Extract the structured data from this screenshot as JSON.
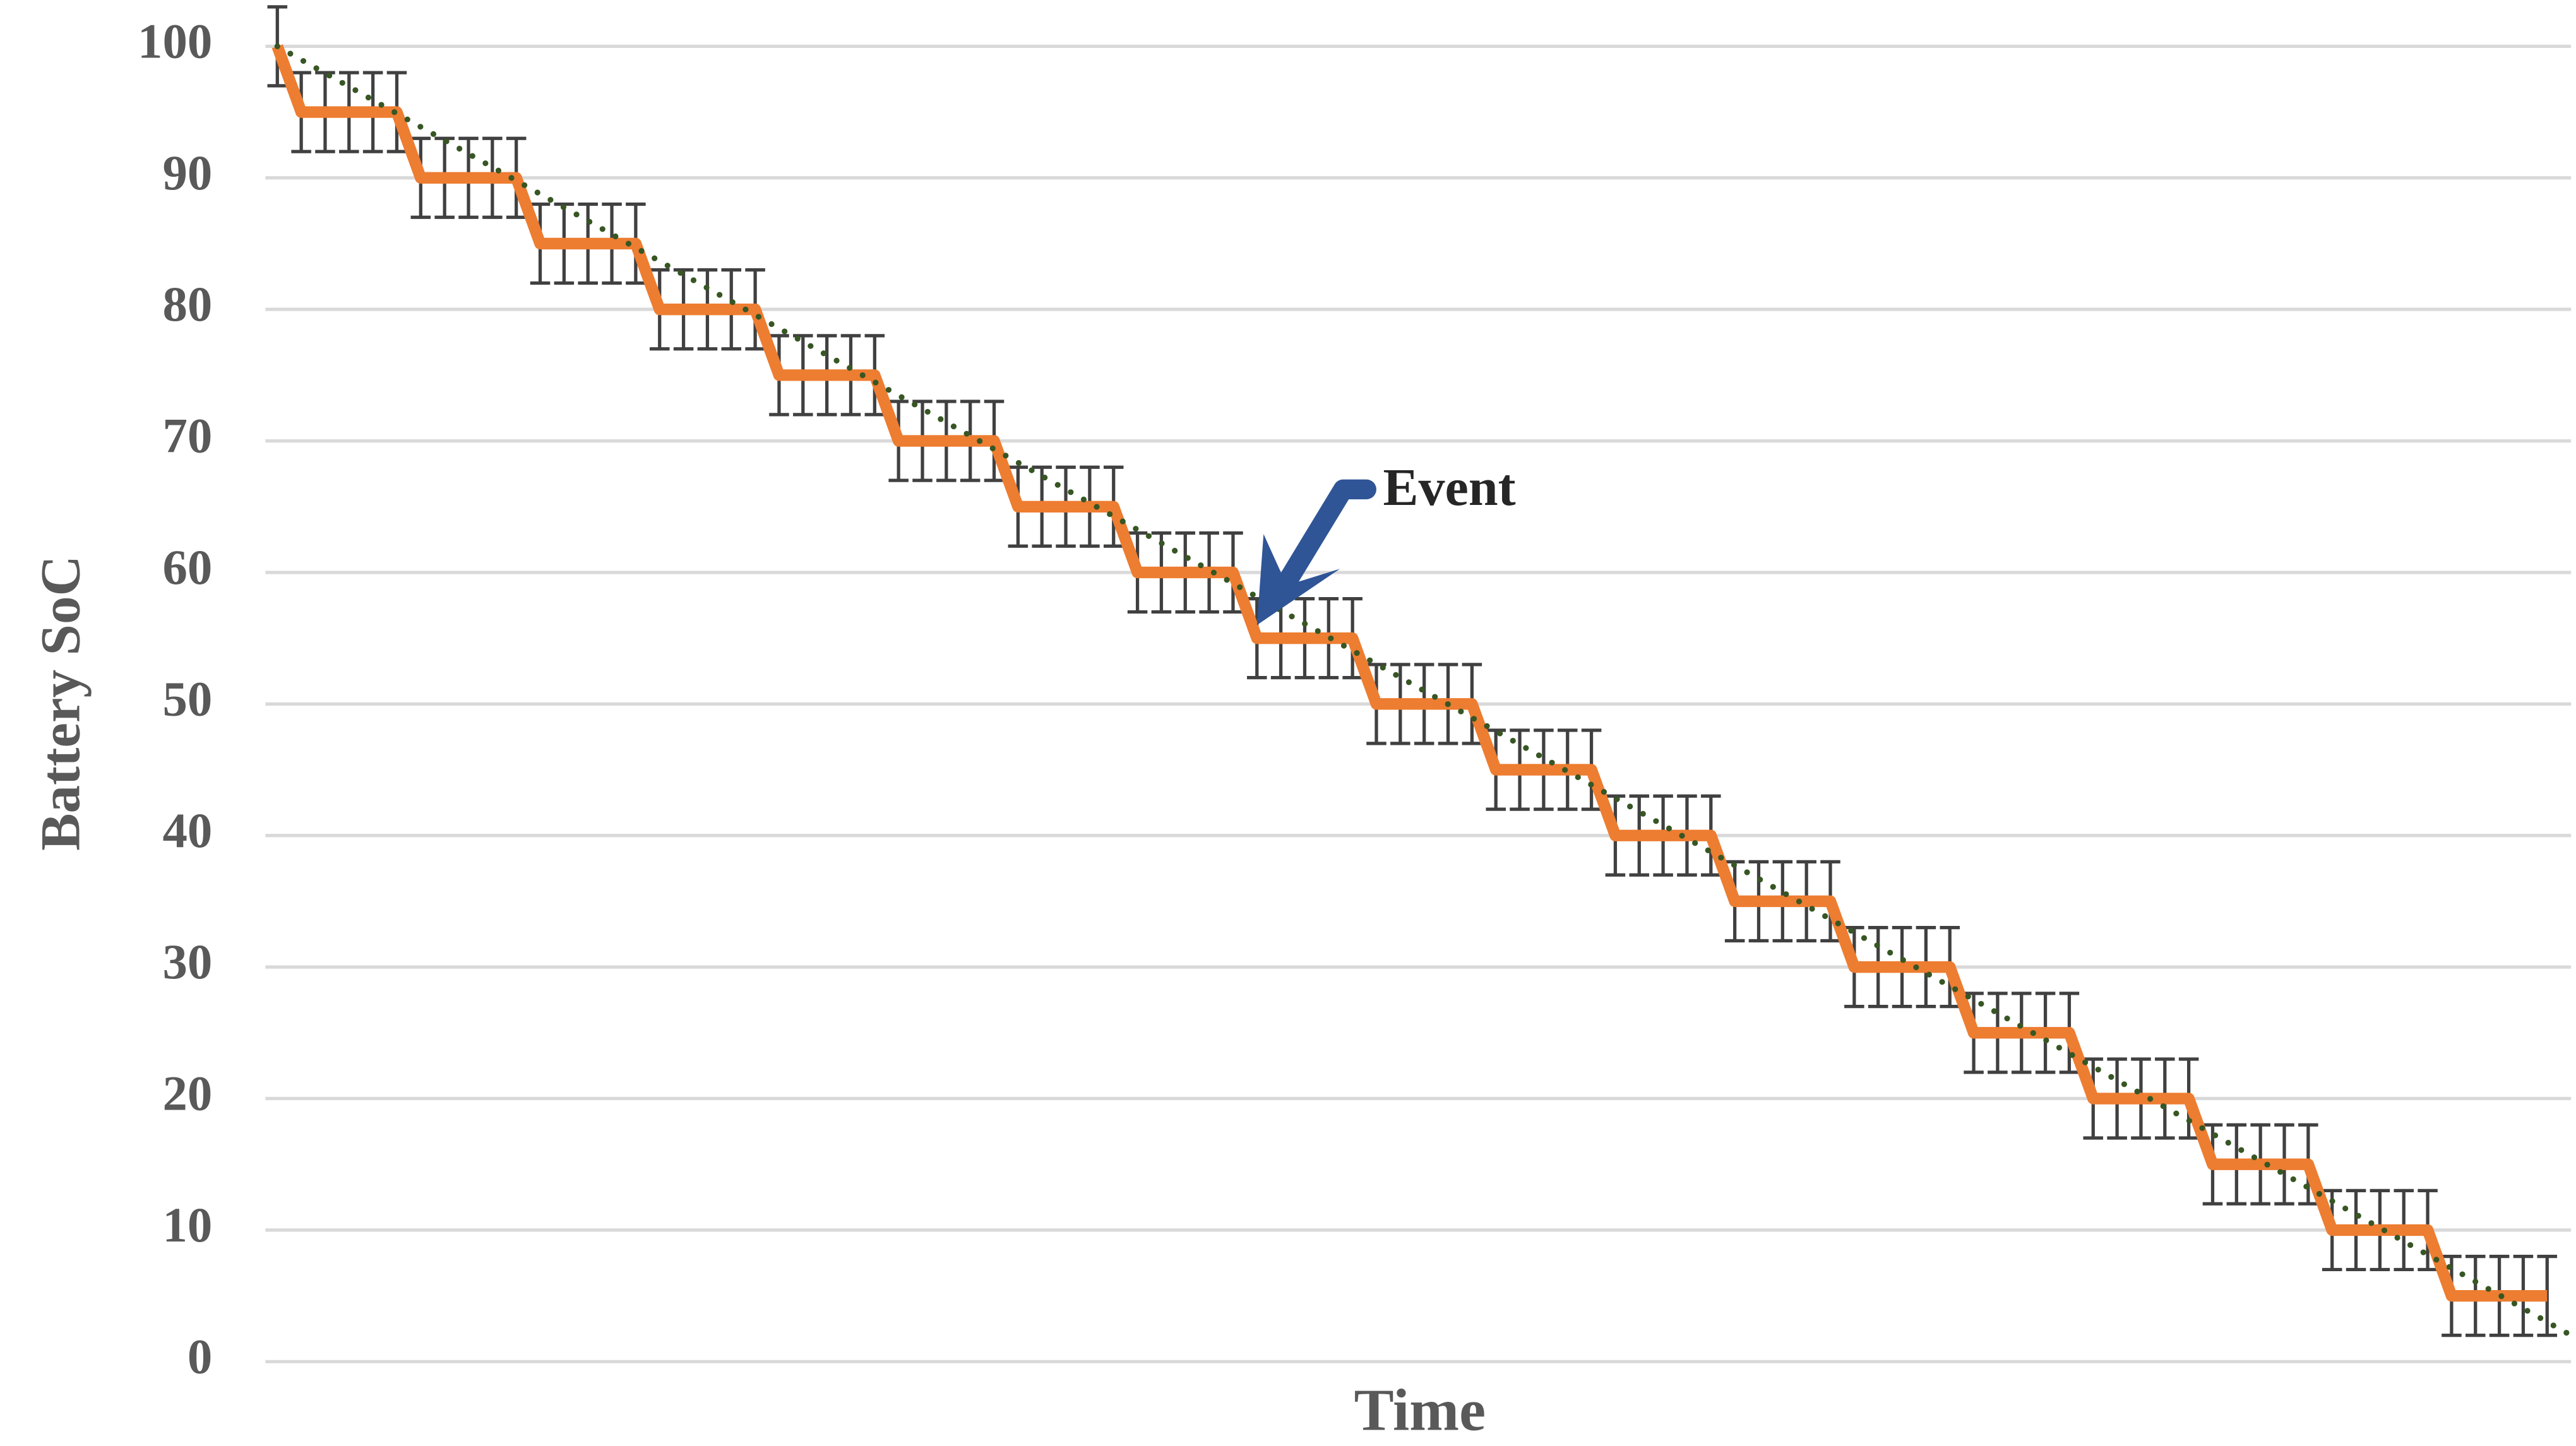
{
  "chart_data": {
    "type": "line",
    "xlabel": "Time",
    "ylabel": "Battery SoC",
    "x": [
      0,
      1,
      2,
      3,
      4,
      5,
      6,
      7,
      8,
      9,
      10,
      11,
      12,
      13,
      14,
      15,
      16,
      17,
      18,
      19,
      20,
      21,
      22,
      23,
      24,
      25,
      26,
      27,
      28,
      29,
      30,
      31,
      32,
      33,
      34,
      35,
      36,
      37,
      38,
      39,
      40,
      41,
      42,
      43,
      44,
      45,
      46,
      47,
      48,
      49,
      50,
      51,
      52,
      53,
      54,
      55,
      56,
      57,
      58,
      59,
      60,
      61,
      62,
      63,
      64,
      65,
      66,
      67,
      68,
      69,
      70,
      71,
      72,
      73,
      74,
      75,
      76,
      77,
      78,
      79,
      80,
      81,
      82,
      83,
      84,
      85,
      86,
      87,
      88,
      89,
      90,
      91,
      92,
      93,
      94,
      95
    ],
    "series": [
      {
        "color": "#ed7d31",
        "error": 3,
        "error_color": "#404040",
        "values": [
          100,
          95,
          95,
          95,
          95,
          95,
          90,
          90,
          90,
          90,
          90,
          85,
          85,
          85,
          85,
          85,
          80,
          80,
          80,
          80,
          80,
          75,
          75,
          75,
          75,
          75,
          70,
          70,
          70,
          70,
          70,
          65,
          65,
          65,
          65,
          65,
          60,
          60,
          60,
          60,
          60,
          55,
          55,
          55,
          55,
          55,
          50,
          50,
          50,
          50,
          50,
          45,
          45,
          45,
          45,
          45,
          40,
          40,
          40,
          40,
          40,
          35,
          35,
          35,
          35,
          35,
          30,
          30,
          30,
          30,
          30,
          25,
          25,
          25,
          25,
          25,
          20,
          20,
          20,
          20,
          20,
          15,
          15,
          15,
          15,
          15,
          10,
          10,
          10,
          10,
          10,
          5,
          5,
          5,
          5,
          5
        ]
      }
    ],
    "trendline": {
      "x": [
        0,
        96
      ],
      "values": [
        100,
        2
      ],
      "color": "#375623"
    },
    "annotations": [
      {
        "text": "Event",
        "x": 41,
        "y": 56,
        "color": "#2f5597"
      }
    ],
    "xlim": [
      -0.5,
      96
    ],
    "ylim": [
      0,
      100
    ],
    "yticks": [
      0,
      10,
      20,
      30,
      40,
      50,
      60,
      70,
      80,
      90,
      100
    ],
    "grid": true
  }
}
